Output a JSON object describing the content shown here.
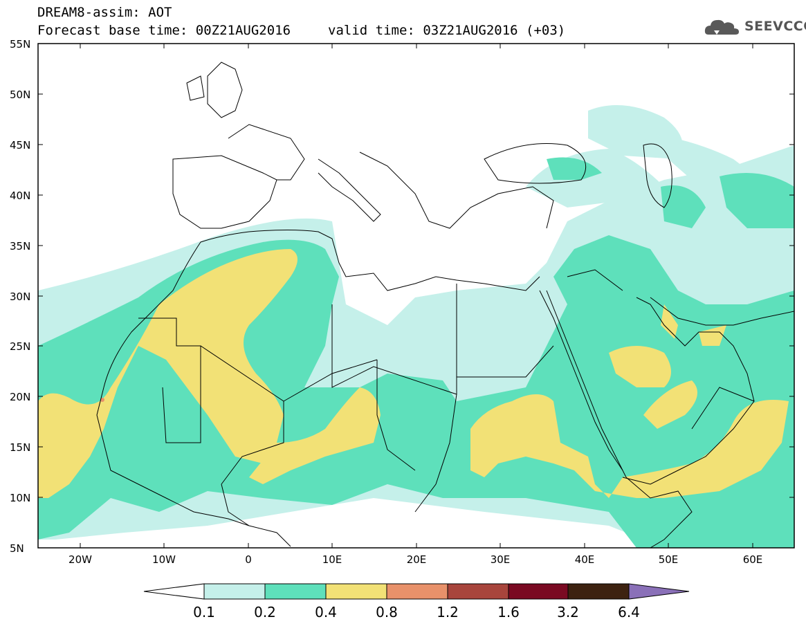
{
  "header": {
    "title": "DREAM8-assim: AOT",
    "base_time": "Forecast base time: 00Z21AUG2016",
    "valid_time": "valid time: 03Z21AUG2016 (+03)"
  },
  "logo": {
    "text": "SEEVCCC",
    "icon": "cloud-icon"
  },
  "map": {
    "lat_labels": [
      "55N",
      "50N",
      "45N",
      "40N",
      "35N",
      "30N",
      "25N",
      "20N",
      "15N",
      "10N",
      "5N"
    ],
    "lon_labels": [
      "20W",
      "10W",
      "0",
      "10E",
      "20E",
      "30E",
      "40E",
      "50E",
      "60E"
    ],
    "lat_range": [
      5,
      55
    ],
    "lon_range": [
      -25,
      65
    ],
    "field": "Aerosol Optical Thickness"
  },
  "colorbar": {
    "labels": [
      "0.1",
      "0.2",
      "0.4",
      "0.8",
      "1.2",
      "1.6",
      "3.2",
      "6.4"
    ],
    "colors": [
      "#c5f0ea",
      "#5ee0bb",
      "#f2e176",
      "#e8916a",
      "#a8453c",
      "#7a0a22",
      "#3d2210",
      "#8a70b8"
    ],
    "under_color": "#ffffff"
  }
}
